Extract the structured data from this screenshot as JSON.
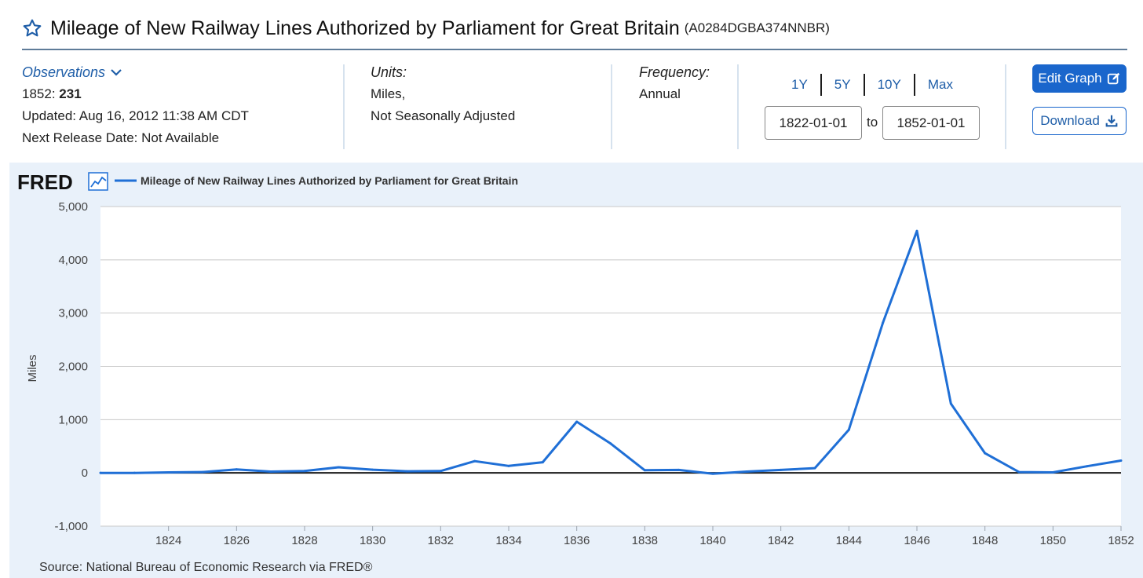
{
  "header": {
    "title": "Mileage of New Railway Lines Authorized by Parliament for Great Britain",
    "series_id": "(A0284DGBA374NNBR)"
  },
  "observations": {
    "label": "Observations",
    "latest_date": "1852:",
    "latest_value": "231",
    "updated": "Updated: Aug 16, 2012 11:38 AM CDT",
    "next_release": "Next Release Date: Not Available"
  },
  "units": {
    "label": "Units:",
    "line1": "Miles,",
    "line2": "Not Seasonally Adjusted"
  },
  "frequency": {
    "label": "Frequency:",
    "value": "Annual"
  },
  "range": {
    "links": [
      "1Y",
      "5Y",
      "10Y",
      "Max"
    ],
    "start": "1822-01-01",
    "to_label": "to",
    "end": "1852-01-01"
  },
  "buttons": {
    "edit_graph": "Edit Graph",
    "download": "Download"
  },
  "colors": {
    "accent": "#1a66cc",
    "series": "#1f6fd6",
    "link": "#1f5ea8",
    "panel_bg": "#e9f1fa"
  },
  "chart_data": {
    "type": "line",
    "logo": "FRED",
    "legend_entry": "Mileage of New Railway Lines Authorized by Parliament for Great Britain",
    "ylabel": "Miles",
    "ylim": [
      -1000,
      5000
    ],
    "xlim": [
      1822,
      1852
    ],
    "yticks": [
      -1000,
      0,
      1000,
      2000,
      3000,
      4000,
      5000
    ],
    "ytick_labels": [
      "-1,000",
      "0",
      "1,000",
      "2,000",
      "3,000",
      "4,000",
      "5,000"
    ],
    "xticks": [
      1824,
      1826,
      1828,
      1830,
      1832,
      1834,
      1836,
      1838,
      1840,
      1842,
      1844,
      1846,
      1848,
      1850,
      1852
    ],
    "grid": true,
    "legend_position": "top-left",
    "series": [
      {
        "name": "Mileage of New Railway Lines Authorized by Parliament for Great Britain",
        "x": [
          1822,
          1823,
          1824,
          1825,
          1826,
          1827,
          1828,
          1829,
          1830,
          1831,
          1832,
          1833,
          1834,
          1835,
          1836,
          1837,
          1838,
          1839,
          1840,
          1841,
          1842,
          1843,
          1844,
          1845,
          1846,
          1847,
          1848,
          1849,
          1850,
          1851,
          1852
        ],
        "values": [
          0,
          0,
          10,
          15,
          65,
          25,
          35,
          105,
          60,
          30,
          35,
          220,
          130,
          200,
          960,
          550,
          50,
          55,
          -15,
          25,
          55,
          90,
          810,
          2820,
          4540,
          1300,
          370,
          15,
          10,
          125,
          231
        ]
      }
    ]
  },
  "source": "Source: National Bureau of Economic Research via FRED®"
}
